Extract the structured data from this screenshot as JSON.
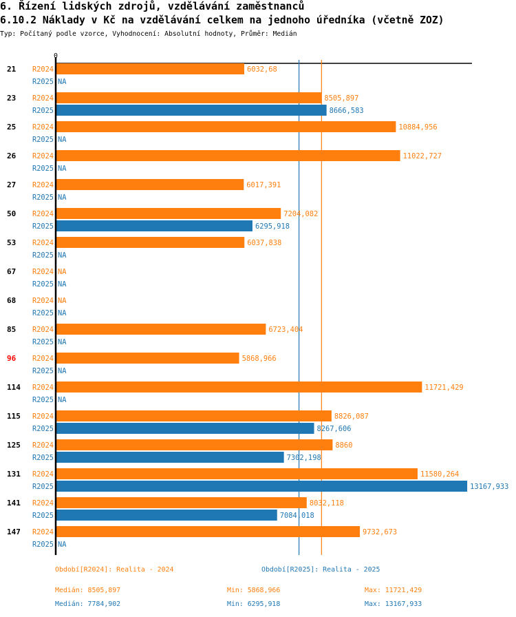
{
  "header": {
    "section_title": "6. Řízení lidských zdrojů, vzdělávání zaměstnanců",
    "chart_title": "6.10.2 Náklady v Kč na vzdělávání celkem na jednoho úředníka (včetně ZOZ)",
    "subtitle": "Typ: Počítaný podle vzorce, Vyhodnocení: Absolutní hodnoty, Průměr: Medián"
  },
  "colors": {
    "R2024": "#ff7f0e",
    "R2025": "#1f77b4",
    "highlight": "#ff0000",
    "axis": "#000000"
  },
  "chart_data": {
    "type": "bar",
    "orientation": "horizontal",
    "title": "6.10.2 Náklady v Kč na vzdělávání celkem na jednoho úředníka (včetně ZOZ)",
    "xlabel": "",
    "ylabel": "",
    "xlim": [
      0,
      13320
    ],
    "x_tick_labels": [
      "0"
    ],
    "grid": false,
    "legend_position": "bottom",
    "na_label": "NA",
    "highlighted_category": "96",
    "categories": [
      "21",
      "23",
      "25",
      "26",
      "27",
      "50",
      "53",
      "67",
      "68",
      "85",
      "96",
      "114",
      "115",
      "125",
      "131",
      "141",
      "147"
    ],
    "series": [
      {
        "name": "R2024",
        "values": [
          6032.68,
          8505.897,
          10884.956,
          11022.727,
          6017.391,
          7204.082,
          6037.838,
          null,
          null,
          6723.404,
          5868.966,
          11721.429,
          8826.087,
          8860,
          11580.264,
          8032.118,
          9732.673
        ],
        "labels": [
          "6032,68",
          "8505,897",
          "10884,956",
          "11022,727",
          "6017,391",
          "7204,082",
          "6037,838",
          "NA",
          "NA",
          "6723,404",
          "5868,966",
          "11721,429",
          "8826,087",
          "8860",
          "11580,264",
          "8032,118",
          "9732,673"
        ]
      },
      {
        "name": "R2025",
        "values": [
          null,
          8666.583,
          null,
          null,
          null,
          6295.918,
          null,
          null,
          null,
          null,
          null,
          null,
          8267.606,
          7302.198,
          13167.933,
          7084.018,
          null
        ],
        "labels": [
          "NA",
          "8666,583",
          "NA",
          "NA",
          "NA",
          "6295,918",
          "NA",
          "NA",
          "NA",
          "NA",
          "NA",
          "NA",
          "8267,606",
          "7302,198",
          "13167,933",
          "7084,018",
          "NA"
        ]
      }
    ],
    "reference_lines": [
      {
        "series": "R2025",
        "kind": "median",
        "value": 7784.902
      },
      {
        "series": "R2024",
        "kind": "median",
        "value": 8505.897
      }
    ]
  },
  "legend": {
    "period_2024": "Období[R2024]: Realita - 2024",
    "period_2025": "Období[R2025]: Realita - 2025",
    "median_2024": "Medián: 8505,897",
    "min_2024": "Min: 5868,966",
    "max_2024": "Max: 11721,429",
    "median_2025": "Medián: 7784,902",
    "min_2025": "Min: 6295,918",
    "max_2025": "Max: 13167,933"
  }
}
